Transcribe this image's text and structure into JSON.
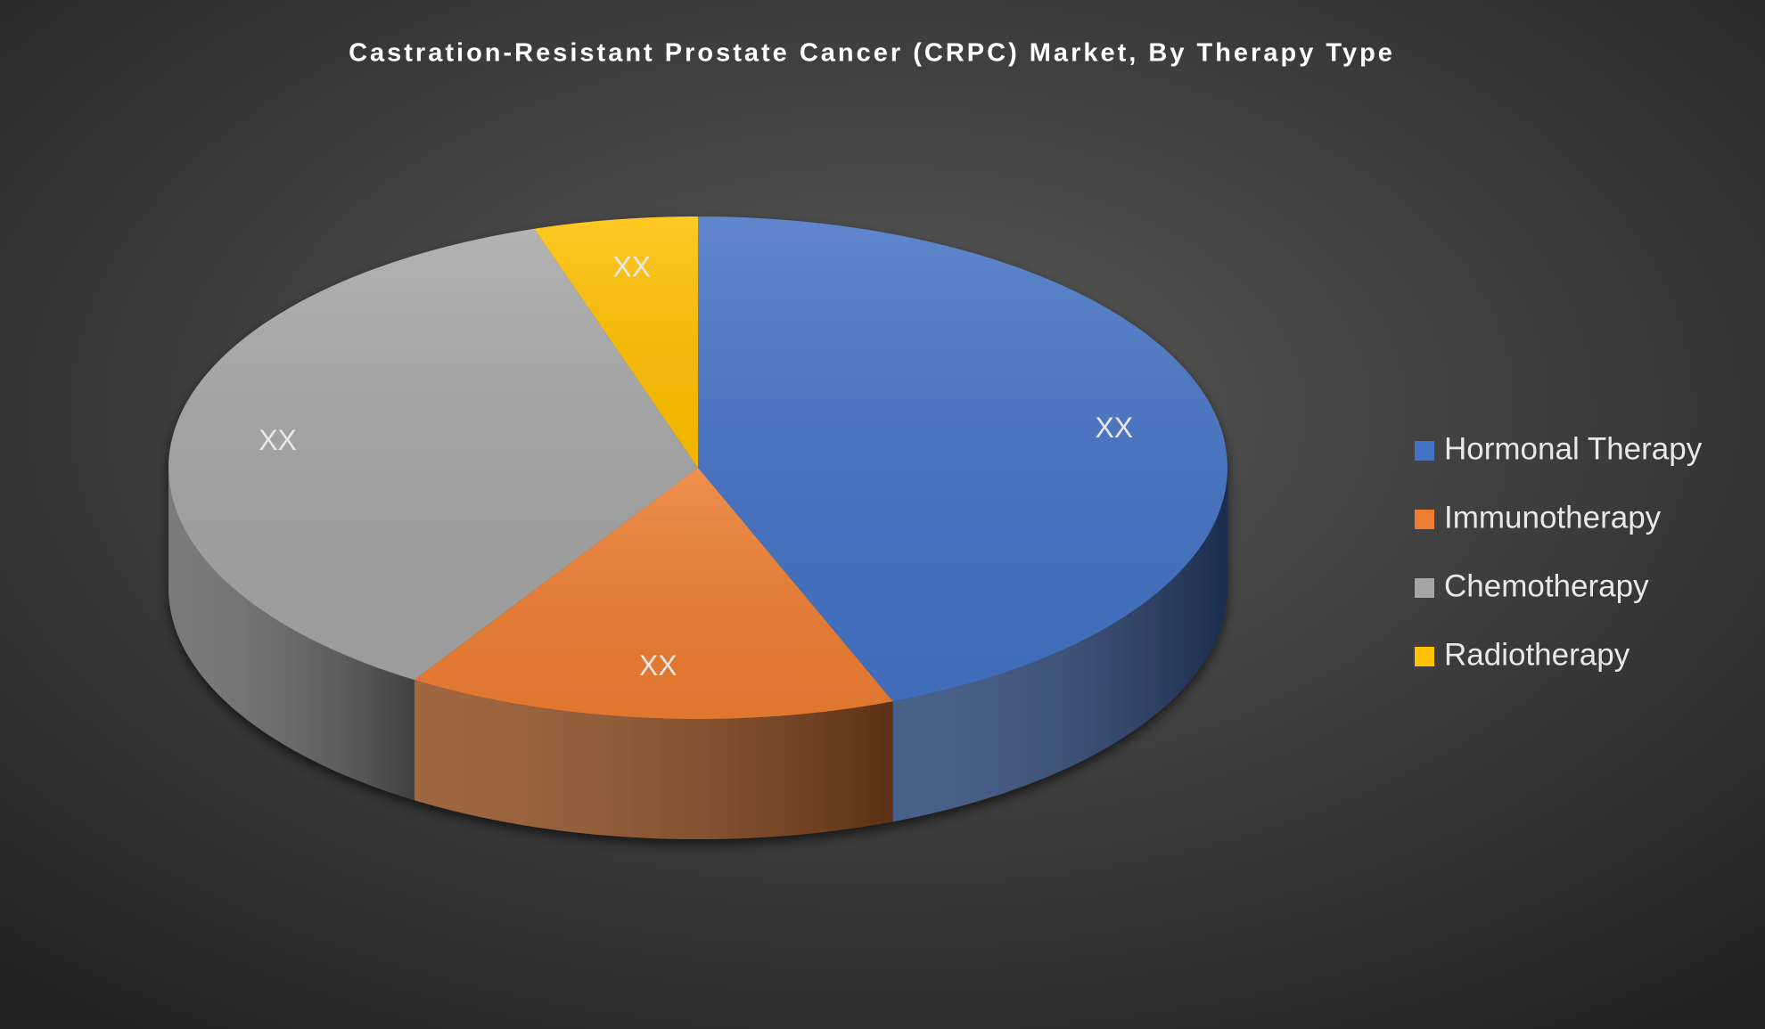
{
  "chart_data": {
    "type": "pie",
    "title": "Castration-Resistant Prostate Cancer (CRPC) Market, By Therapy Type",
    "categories": [
      "Hormonal Therapy",
      "Immunotherapy",
      "Chemotherapy",
      "Radiotherapy"
    ],
    "values": [
      44,
      15,
      36,
      5
    ],
    "value_labels": [
      "XX",
      "XX",
      "XX",
      "XX"
    ],
    "colors": [
      "#4472c4",
      "#ed7d31",
      "#a5a5a5",
      "#ffc000"
    ]
  }
}
